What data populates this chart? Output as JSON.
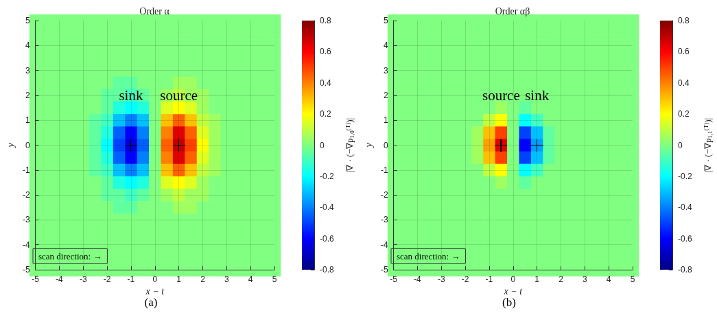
{
  "chart_data": [
    {
      "type": "heatmap",
      "title": "Order α",
      "xlabel": "x − t",
      "ylabel": "y",
      "clabel": "|∇ · (−∇p$_{1,0}$$^{(T)}$)|",
      "categories": [
        "-5",
        null,
        "-4",
        null,
        "-3",
        null,
        "-2",
        null,
        "-1",
        null,
        "0",
        null,
        "1",
        null,
        "2",
        null,
        "3",
        null,
        "4",
        null,
        "5"
      ],
      "y_categories": [
        "5",
        null,
        "4",
        null,
        "3",
        null,
        "2",
        null,
        "1",
        null,
        "0",
        null,
        "-1",
        null,
        "-2",
        null,
        "-3",
        null,
        "-4",
        null,
        "-5"
      ],
      "clim": [
        -0.8,
        0.8
      ],
      "cticks": [
        -0.8,
        -0.6,
        -0.4,
        -0.2,
        0,
        0.2,
        0.4,
        0.6,
        0.8
      ],
      "grid": true,
      "cells": [
        [
          0,
          0,
          0,
          0,
          0,
          0,
          0,
          0,
          0,
          0,
          0,
          0,
          0,
          0,
          0,
          0,
          0,
          0,
          0,
          0,
          0
        ],
        [
          0,
          0,
          0,
          0,
          0,
          0,
          0,
          0,
          0,
          0,
          0,
          0,
          0,
          0,
          0,
          0,
          0,
          0,
          0,
          0,
          0
        ],
        [
          0,
          0,
          0,
          0,
          0,
          0,
          0,
          0,
          0,
          0,
          0,
          0,
          0,
          0,
          0,
          0,
          0,
          0,
          0,
          0,
          0
        ],
        [
          0,
          0,
          0,
          0,
          0,
          0,
          0,
          0,
          0,
          0,
          0,
          0,
          0,
          0,
          0,
          0,
          0,
          0,
          0,
          0,
          0
        ],
        [
          0,
          0,
          0,
          0,
          0,
          0,
          0,
          0,
          0,
          0,
          0,
          0,
          0,
          0,
          0,
          0,
          0,
          0,
          0,
          0,
          0
        ],
        [
          0,
          0,
          0,
          0,
          0,
          0,
          0,
          -0.05,
          -0.05,
          0,
          0,
          0,
          0.05,
          0.05,
          0,
          0,
          0,
          0,
          0,
          0,
          0
        ],
        [
          0,
          0,
          0,
          0,
          0,
          0,
          -0.05,
          -0.05,
          -0.1,
          -0.05,
          0,
          0.05,
          0.1,
          0.05,
          0.05,
          0,
          0,
          0,
          0,
          0,
          0
        ],
        [
          0,
          0,
          0,
          0,
          0,
          0,
          -0.05,
          -0.15,
          -0.2,
          -0.15,
          0,
          0.15,
          0.2,
          0.15,
          0.05,
          0,
          0,
          0,
          0,
          0,
          0
        ],
        [
          0,
          0,
          0,
          0,
          0,
          -0.05,
          -0.1,
          -0.3,
          -0.4,
          -0.3,
          0,
          0.3,
          0.45,
          0.3,
          0.1,
          0.05,
          0,
          0,
          0,
          0,
          0
        ],
        [
          0,
          0,
          0,
          0,
          0,
          -0.05,
          -0.15,
          -0.45,
          -0.6,
          -0.4,
          0,
          0.4,
          0.65,
          0.45,
          0.15,
          0.05,
          0,
          0,
          0,
          0,
          0
        ],
        [
          0,
          0,
          0,
          0,
          0,
          -0.05,
          -0.2,
          -0.5,
          -0.65,
          -0.45,
          0,
          0.45,
          0.7,
          0.5,
          0.2,
          0.05,
          0,
          0,
          0,
          0,
          0
        ],
        [
          0,
          0,
          0,
          0,
          0,
          -0.05,
          -0.15,
          -0.45,
          -0.6,
          -0.4,
          0,
          0.4,
          0.65,
          0.45,
          0.15,
          0.05,
          0,
          0,
          0,
          0,
          0
        ],
        [
          0,
          0,
          0,
          0,
          0,
          -0.05,
          -0.1,
          -0.3,
          -0.4,
          -0.3,
          0,
          0.3,
          0.45,
          0.3,
          0.1,
          0.05,
          0,
          0,
          0,
          0,
          0
        ],
        [
          0,
          0,
          0,
          0,
          0,
          0,
          -0.05,
          -0.15,
          -0.2,
          -0.15,
          0,
          0.15,
          0.2,
          0.15,
          0.05,
          0,
          0,
          0,
          0,
          0,
          0
        ],
        [
          0,
          0,
          0,
          0,
          0,
          0,
          -0.05,
          -0.05,
          -0.1,
          -0.05,
          0,
          0.05,
          0.1,
          0.05,
          0.05,
          0,
          0,
          0,
          0,
          0,
          0
        ],
        [
          0,
          0,
          0,
          0,
          0,
          0,
          0,
          -0.05,
          -0.05,
          0,
          0,
          0,
          0.05,
          0.05,
          0,
          0,
          0,
          0,
          0,
          0,
          0
        ],
        [
          0,
          0,
          0,
          0,
          0,
          0,
          0,
          0,
          0,
          0,
          0,
          0,
          0,
          0,
          0,
          0,
          0,
          0,
          0,
          0,
          0
        ],
        [
          0,
          0,
          0,
          0,
          0,
          0,
          0,
          0,
          0,
          0,
          0,
          0,
          0,
          0,
          0,
          0,
          0,
          0,
          0,
          0,
          0
        ],
        [
          0,
          0,
          0,
          0,
          0,
          0,
          0,
          0,
          0,
          0,
          0,
          0,
          0,
          0,
          0,
          0,
          0,
          0,
          0,
          0,
          0
        ],
        [
          0,
          0,
          0,
          0,
          0,
          0,
          0,
          0,
          0,
          0,
          0,
          0,
          0,
          0,
          0,
          0,
          0,
          0,
          0,
          0,
          0
        ],
        [
          0,
          0,
          0,
          0,
          0,
          0,
          0,
          0,
          0,
          0,
          0,
          0,
          0,
          0,
          0,
          0,
          0,
          0,
          0,
          0,
          0
        ]
      ],
      "annotations": [
        "sink",
        "source",
        "scan direction: →",
        "(a)"
      ]
    },
    {
      "type": "heatmap",
      "title": "Order αβ",
      "xlabel": "x − t",
      "ylabel": "y",
      "clabel": "|∇ · (−∇p$_{1,1}$$^{(T)}$)|",
      "categories": [
        "-5",
        null,
        "-4",
        null,
        "-3",
        null,
        "-2",
        null,
        "-1",
        null,
        "0",
        null,
        "1",
        null,
        "2",
        null,
        "3",
        null,
        "4",
        null,
        "5"
      ],
      "y_categories": [
        "5",
        null,
        "4",
        null,
        "3",
        null,
        "2",
        null,
        "1",
        null,
        "0",
        null,
        "-1",
        null,
        "-2",
        null,
        "-3",
        null,
        "-4",
        null,
        "-5"
      ],
      "clim": [
        -0.8,
        0.8
      ],
      "cticks": [
        -0.8,
        -0.6,
        -0.4,
        -0.2,
        0,
        0.2,
        0.4,
        0.6,
        0.8
      ],
      "grid": true,
      "cells": [
        [
          0,
          0,
          0,
          0,
          0,
          0,
          0,
          0,
          0,
          0,
          0,
          0,
          0,
          0,
          0,
          0,
          0,
          0,
          0,
          0,
          0
        ],
        [
          0,
          0,
          0,
          0,
          0,
          0,
          0,
          0,
          0,
          0,
          0,
          0,
          0,
          0,
          0,
          0,
          0,
          0,
          0,
          0,
          0
        ],
        [
          0,
          0,
          0,
          0,
          0,
          0,
          0,
          0,
          0,
          0,
          0,
          0,
          0,
          0,
          0,
          0,
          0,
          0,
          0,
          0,
          0
        ],
        [
          0,
          0,
          0,
          0,
          0,
          0,
          0,
          0,
          0,
          0,
          0,
          0,
          0,
          0,
          0,
          0,
          0,
          0,
          0,
          0,
          0
        ],
        [
          0,
          0,
          0,
          0,
          0,
          0,
          0,
          0,
          0,
          0,
          0,
          0,
          0,
          0,
          0,
          0,
          0,
          0,
          0,
          0,
          0
        ],
        [
          0,
          0,
          0,
          0,
          0,
          0,
          0,
          0,
          0,
          0,
          0,
          0,
          0,
          0,
          0,
          0,
          0,
          0,
          0,
          0,
          0
        ],
        [
          0,
          0,
          0,
          0,
          0,
          0,
          0,
          0,
          0,
          0,
          0,
          0,
          0,
          0,
          0,
          0,
          0,
          0,
          0,
          0,
          0
        ],
        [
          0,
          0,
          0,
          0,
          0,
          0,
          0,
          0,
          0,
          0.05,
          0,
          -0.05,
          0,
          0,
          0,
          0,
          0,
          0,
          0,
          0,
          0
        ],
        [
          0,
          0,
          0,
          0,
          0,
          0,
          0,
          0,
          0.1,
          0.2,
          0,
          -0.2,
          -0.1,
          0,
          0,
          0,
          0,
          0,
          0,
          0,
          0
        ],
        [
          0,
          0,
          0,
          0,
          0,
          0,
          0,
          0.05,
          0.3,
          0.5,
          0,
          -0.5,
          -0.3,
          -0.05,
          0,
          0,
          0,
          0,
          0,
          0,
          0
        ],
        [
          0,
          0,
          0,
          0,
          0,
          0,
          0,
          0.05,
          0.35,
          0.65,
          0,
          -0.6,
          -0.35,
          -0.05,
          0,
          0,
          0,
          0,
          0,
          0,
          0
        ],
        [
          0,
          0,
          0,
          0,
          0,
          0,
          0,
          0.05,
          0.3,
          0.5,
          0,
          -0.5,
          -0.3,
          -0.05,
          0,
          0,
          0,
          0,
          0,
          0,
          0
        ],
        [
          0,
          0,
          0,
          0,
          0,
          0,
          0,
          0,
          0.1,
          0.2,
          0,
          -0.2,
          -0.1,
          0,
          0,
          0,
          0,
          0,
          0,
          0,
          0
        ],
        [
          0,
          0,
          0,
          0,
          0,
          0,
          0,
          0,
          0,
          0.05,
          0,
          -0.05,
          0,
          0,
          0,
          0,
          0,
          0,
          0,
          0,
          0
        ],
        [
          0,
          0,
          0,
          0,
          0,
          0,
          0,
          0,
          0,
          0,
          0,
          0,
          0,
          0,
          0,
          0,
          0,
          0,
          0,
          0,
          0
        ],
        [
          0,
          0,
          0,
          0,
          0,
          0,
          0,
          0,
          0,
          0,
          0,
          0,
          0,
          0,
          0,
          0,
          0,
          0,
          0,
          0,
          0
        ],
        [
          0,
          0,
          0,
          0,
          0,
          0,
          0,
          0,
          0,
          0,
          0,
          0,
          0,
          0,
          0,
          0,
          0,
          0,
          0,
          0,
          0
        ],
        [
          0,
          0,
          0,
          0,
          0,
          0,
          0,
          0,
          0,
          0,
          0,
          0,
          0,
          0,
          0,
          0,
          0,
          0,
          0,
          0,
          0
        ],
        [
          0,
          0,
          0,
          0,
          0,
          0,
          0,
          0,
          0,
          0,
          0,
          0,
          0,
          0,
          0,
          0,
          0,
          0,
          0,
          0,
          0
        ],
        [
          0,
          0,
          0,
          0,
          0,
          0,
          0,
          0,
          0,
          0,
          0,
          0,
          0,
          0,
          0,
          0,
          0,
          0,
          0,
          0,
          0
        ],
        [
          0,
          0,
          0,
          0,
          0,
          0,
          0,
          0,
          0,
          0,
          0,
          0,
          0,
          0,
          0,
          0,
          0,
          0,
          0,
          0,
          0
        ]
      ],
      "annotations": [
        "source",
        "sink",
        "scan direction: →",
        "(b)"
      ]
    }
  ]
}
